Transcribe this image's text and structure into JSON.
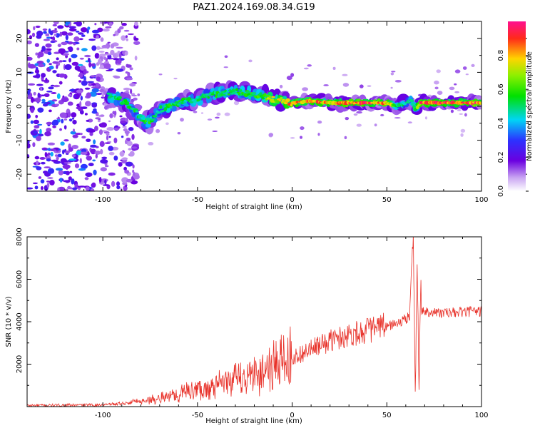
{
  "title": "PAZ1.2024.169.08.34.G19",
  "chart_data": [
    {
      "type": "heatmap",
      "xlabel": "Height of straight line (km)",
      "ylabel": "Frequency (Hz)",
      "xlim": [
        -140,
        100
      ],
      "ylim": [
        -25,
        25
      ],
      "x_ticks": [
        -100,
        -50,
        0,
        50,
        100
      ],
      "y_ticks": [
        -20,
        -10,
        0,
        10,
        20
      ],
      "colorbar": {
        "label": "Normalized spectral amplitude",
        "range": [
          0,
          1
        ],
        "ticks": [
          "0.0",
          "0.2",
          "0.4",
          "0.6",
          "0.8"
        ],
        "colormap": "rainbow (white-purple-blue-cyan-green-yellow-red-magenta)"
      },
      "ridge": {
        "x": [
          -95,
          -88,
          -82,
          -78,
          -74,
          -70,
          -65,
          -60,
          -55,
          -50,
          -45,
          -40,
          -35,
          -30,
          -25,
          -20,
          -15,
          -10,
          -5,
          0,
          10,
          20,
          30,
          40,
          50,
          55,
          60,
          63,
          65,
          68,
          75,
          85,
          100
        ],
        "y": [
          3,
          1,
          -2,
          -5,
          -4,
          -1,
          0,
          1,
          2,
          2,
          3,
          3.5,
          4,
          4.5,
          4,
          3.5,
          3,
          2,
          1.5,
          1,
          1.5,
          1,
          1,
          1,
          1,
          0,
          1,
          2,
          -1,
          1,
          1,
          1,
          1
        ],
        "amplitude": [
          0.55,
          0.6,
          0.6,
          0.65,
          0.6,
          0.55,
          0.6,
          0.6,
          0.55,
          0.6,
          0.55,
          0.6,
          0.6,
          0.6,
          0.6,
          0.65,
          0.7,
          0.8,
          0.85,
          0.95,
          0.95,
          0.9,
          1,
          1,
          0.95,
          0.6,
          0.55,
          0.5,
          0.6,
          1,
          1,
          1,
          1
        ]
      },
      "noise_region_x": [
        -140,
        -88
      ]
    },
    {
      "type": "line",
      "xlabel": "Height of straight line (km)",
      "ylabel": "SNR (10 * v/v)",
      "xlim": [
        -140,
        100
      ],
      "ylim": [
        0,
        8000
      ],
      "x_ticks": [
        -100,
        -50,
        0,
        50,
        100
      ],
      "y_ticks": [
        2000,
        4000,
        6000,
        8000
      ],
      "color": "#e8322a",
      "trend": {
        "x": [
          -140,
          -100,
          -90,
          -80,
          -70,
          -60,
          -50,
          -40,
          -30,
          -20,
          -10,
          0,
          10,
          20,
          30,
          40,
          50,
          55,
          60,
          62,
          65,
          68,
          70,
          80,
          90,
          100
        ],
        "y": [
          50,
          80,
          150,
          250,
          400,
          600,
          800,
          950,
          1250,
          1500,
          1950,
          2300,
          2700,
          3100,
          3400,
          3600,
          3800,
          3900,
          4100,
          4300,
          4200,
          4500,
          4500,
          4400,
          4450,
          4500
        ]
      },
      "spike": {
        "x": [
          62,
          63,
          64,
          65,
          66,
          67,
          68
        ],
        "y": [
          4300,
          6500,
          8000,
          500,
          7000,
          1000,
          6000
        ]
      }
    }
  ]
}
